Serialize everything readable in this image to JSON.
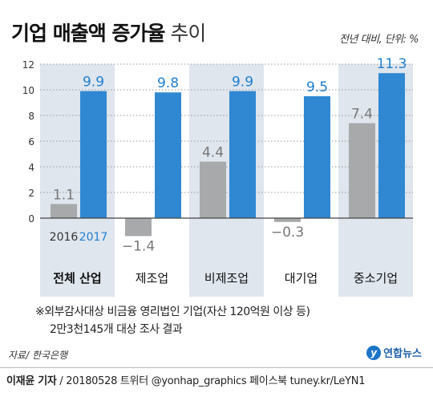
{
  "header": {
    "title_strong": "기업 매출액 증가율",
    "title_light": "추이",
    "unit": "전년 대비, 단위: %"
  },
  "chart_data": {
    "type": "bar",
    "categories": [
      "전체 산업",
      "제조업",
      "비제조업",
      "대기업",
      "중소기업"
    ],
    "series": [
      {
        "name": "2016",
        "values": [
          1.1,
          -1.4,
          4.4,
          -0.3,
          7.4
        ],
        "color": "#a7a9ab"
      },
      {
        "name": "2017",
        "values": [
          9.9,
          9.8,
          9.9,
          9.5,
          11.3
        ],
        "color": "#2f88d1"
      }
    ],
    "value_labels_2016": [
      "1.1",
      "−1.4",
      "4.4",
      "−0.3",
      "7.4"
    ],
    "value_labels_2017": [
      "9.9",
      "9.8",
      "9.9",
      "9.5",
      "11.3"
    ],
    "ylim": [
      -2.5,
      12
    ],
    "yticks": [
      0,
      2,
      4,
      6,
      8,
      10,
      12
    ],
    "ytick_labels": [
      "0",
      "2",
      "4",
      "6",
      "8",
      "10",
      "12"
    ],
    "legend_inline": {
      "label_2016": "2016",
      "label_2017": "2017"
    },
    "shaded_band_color": "#dfe6ee"
  },
  "footnote": {
    "line1": "※외부감사대상 비금융 영리법인 기업(자산 120억원 이상 등)",
    "line2": "2만3천145개 대상 조사 결과"
  },
  "source": "자료/ 한국은행",
  "brand": {
    "mark": "y",
    "text": "연합뉴스"
  },
  "credit": {
    "author": "이재윤 기자",
    "rest": " / 20180528   트위터 @yonhap_graphics  페이스북 tuney.kr/LeYN1"
  }
}
